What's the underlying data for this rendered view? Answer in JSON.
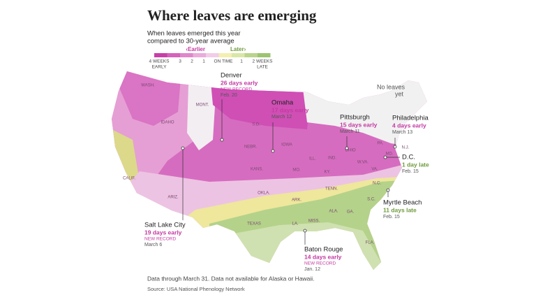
{
  "title": "Where leaves are emerging",
  "subtitle": [
    "When leaves emerged this year",
    "compared to 30-year average"
  ],
  "legend": {
    "earlier": "‹Earlier",
    "later": "Later›",
    "labels": [
      [
        "4 WEEKS",
        "EARLY"
      ],
      [
        "3"
      ],
      [
        "2"
      ],
      [
        "1"
      ],
      [
        "ON TIME"
      ],
      [
        "1"
      ],
      [
        "2 WEEKS",
        "LATE"
      ]
    ]
  },
  "no_leaves": [
    "No leaves",
    "yet"
  ],
  "annotations": [
    {
      "city": "Denver",
      "change": "26 days early",
      "note": "NEW RECORD",
      "date": "Feb. 20",
      "color": "#c43aa3"
    },
    {
      "city": "Omaha",
      "change": "17 days early",
      "date": "March 12",
      "color": "#c43aa3"
    },
    {
      "city": "Pittsburgh",
      "change": "15 days early",
      "date": "March 11",
      "color": "#c43aa3"
    },
    {
      "city": "Philadelphia",
      "change": "4 days early",
      "date": "March 13",
      "color": "#c43aa3"
    },
    {
      "city": "D.C.",
      "change": "1 day late",
      "date": "Feb. 15",
      "color": "#6f9a3c"
    },
    {
      "city": "Myrtle Beach",
      "change": "11 days late",
      "date": "Feb. 15",
      "color": "#6f9a3c"
    },
    {
      "city": "Salt Lake City",
      "change": "19 days early",
      "note": "NEW RECORD",
      "date": "March 6",
      "color": "#c43aa3"
    },
    {
      "city": "Baton Rouge",
      "change": "14 days early",
      "note": "NEW RECORD",
      "date": "Jan. 12",
      "color": "#c43aa3"
    }
  ],
  "state_labels": [
    "WASH.",
    "IDAHO",
    "MONT.",
    "CALIF.",
    "ARIZ.",
    "S.D.",
    "NEBR.",
    "IOWA",
    "KANS.",
    "MO.",
    "OKLA.",
    "TEXAS",
    "ARK.",
    "MISS.",
    "ALA.",
    "GA.",
    "S.C.",
    "N.C.",
    "TENN.",
    "KY.",
    "ILL.",
    "IND.",
    "OHIO",
    "W.VA.",
    "VA.",
    "PA.",
    "N.J.",
    "MD.",
    "LA.",
    "FLA."
  ],
  "footnote": "Data through March 31. Data not available for Alaska or Hawaii.",
  "source": "Source: USA National Phenology Network"
}
